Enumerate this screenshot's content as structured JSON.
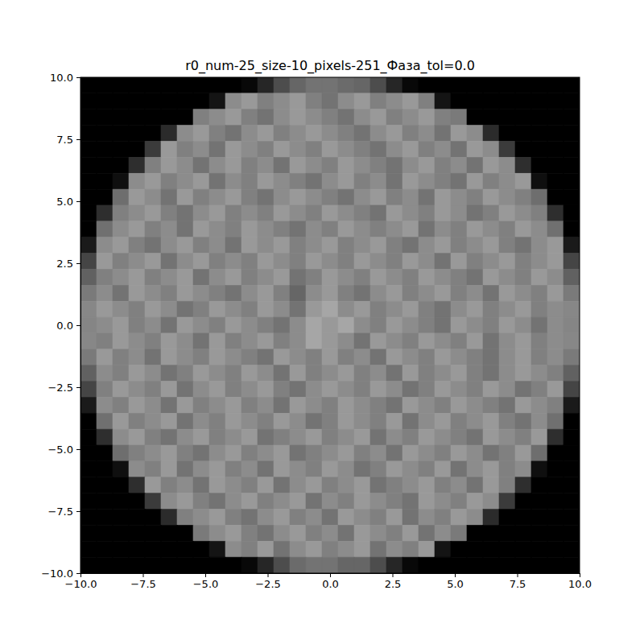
{
  "chart_data": {
    "type": "heatmap",
    "title": "r0_num-25_size-10_pixels-251_Фаза_tol=0.0",
    "xlim": [
      -10,
      10
    ],
    "ylim": [
      -10,
      10
    ],
    "zlim": [
      0,
      1
    ],
    "xticks": [
      {
        "value": -10,
        "label": "−10.0"
      },
      {
        "value": -7.5,
        "label": "−7.5"
      },
      {
        "value": -5,
        "label": "−5.0"
      },
      {
        "value": -2.5,
        "label": "−2.5"
      },
      {
        "value": 0,
        "label": "0.0"
      },
      2.5,
      {
        "value": 5,
        "label": "5.0"
      },
      7.5,
      {
        "value": 10,
        "label": "10.0"
      }
    ],
    "yticks": [
      {
        "value": -10,
        "label": "−10.0"
      },
      {
        "value": -7.5,
        "label": "−7.5"
      },
      {
        "value": -5,
        "label": "−5.0"
      },
      {
        "value": -2.5,
        "label": "−2.5"
      },
      {
        "value": 0,
        "label": "0.0"
      },
      2.5,
      {
        "value": 5,
        "label": "5.0"
      },
      7.5,
      {
        "value": 10,
        "label": "10.0"
      }
    ],
    "z": [
      [
        0,
        0,
        0,
        0,
        0,
        0,
        0,
        0,
        0,
        0,
        0.03,
        0.15,
        0.3,
        0.4,
        0.45,
        0.45,
        0.42,
        0.4,
        0.3,
        0.15,
        0.03,
        0,
        0,
        0,
        0,
        0,
        0,
        0,
        0,
        0,
        0
      ],
      [
        0,
        0,
        0,
        0,
        0,
        0,
        0,
        0,
        0.08,
        0.55,
        0.6,
        0.5,
        0.55,
        0.6,
        0.5,
        0.45,
        0.55,
        0.6,
        0.5,
        0.55,
        0.6,
        0.5,
        0.08,
        0,
        0,
        0,
        0,
        0,
        0,
        0,
        0
      ],
      [
        0,
        0,
        0,
        0,
        0,
        0,
        0,
        0.5,
        0.55,
        0.6,
        0.5,
        0.45,
        0.55,
        0.6,
        0.55,
        0.5,
        0.45,
        0.55,
        0.6,
        0.5,
        0.55,
        0.6,
        0.5,
        0.48,
        0,
        0,
        0,
        0,
        0,
        0,
        0
      ],
      [
        0,
        0,
        0,
        0,
        0,
        0.17,
        0.55,
        0.6,
        0.5,
        0.45,
        0.55,
        0.6,
        0.5,
        0.55,
        0.6,
        0.55,
        0.5,
        0.45,
        0.55,
        0.6,
        0.5,
        0.55,
        0.45,
        0.6,
        0.55,
        0.17,
        0,
        0,
        0,
        0,
        0
      ],
      [
        0,
        0,
        0,
        0,
        0.23,
        0.6,
        0.5,
        0.55,
        0.45,
        0.6,
        0.55,
        0.5,
        0.6,
        0.55,
        0.5,
        0.6,
        0.55,
        0.5,
        0.45,
        0.55,
        0.6,
        0.5,
        0.55,
        0.45,
        0.6,
        0.55,
        0.23,
        0,
        0,
        0,
        0
      ],
      [
        0,
        0,
        0,
        0.18,
        0.5,
        0.6,
        0.55,
        0.45,
        0.55,
        0.6,
        0.5,
        0.55,
        0.45,
        0.6,
        0.55,
        0.5,
        0.6,
        0.55,
        0.5,
        0.45,
        0.55,
        0.6,
        0.5,
        0.55,
        0.45,
        0.6,
        0.55,
        0.18,
        0,
        0,
        0
      ],
      [
        0,
        0,
        0.06,
        0.55,
        0.6,
        0.5,
        0.55,
        0.6,
        0.45,
        0.55,
        0.5,
        0.6,
        0.55,
        0.5,
        0.45,
        0.55,
        0.6,
        0.5,
        0.55,
        0.45,
        0.6,
        0.55,
        0.5,
        0.45,
        0.6,
        0.5,
        0.55,
        0.6,
        0.06,
        0,
        0
      ],
      [
        0,
        0,
        0.43,
        0.6,
        0.55,
        0.45,
        0.6,
        0.5,
        0.55,
        0.6,
        0.5,
        0.45,
        0.55,
        0.6,
        0.55,
        0.5,
        0.45,
        0.55,
        0.6,
        0.5,
        0.55,
        0.45,
        0.6,
        0.55,
        0.5,
        0.6,
        0.55,
        0.5,
        0.43,
        0,
        0
      ],
      [
        0,
        0.18,
        0.5,
        0.55,
        0.6,
        0.5,
        0.45,
        0.55,
        0.6,
        0.5,
        0.55,
        0.5,
        0.6,
        0.55,
        0.5,
        0.6,
        0.55,
        0.5,
        0.45,
        0.6,
        0.55,
        0.5,
        0.6,
        0.55,
        0.45,
        0.5,
        0.6,
        0.55,
        0.5,
        0.18,
        0
      ],
      [
        0,
        0.44,
        0.55,
        0.6,
        0.5,
        0.55,
        0.45,
        0.6,
        0.55,
        0.5,
        0.6,
        0.55,
        0.5,
        0.45,
        0.55,
        0.5,
        0.6,
        0.55,
        0.5,
        0.55,
        0.6,
        0.45,
        0.55,
        0.5,
        0.6,
        0.55,
        0.5,
        0.6,
        0.55,
        0.44,
        0
      ],
      [
        0.1,
        0.55,
        0.6,
        0.5,
        0.45,
        0.55,
        0.6,
        0.5,
        0.55,
        0.45,
        0.6,
        0.55,
        0.6,
        0.5,
        0.55,
        0.6,
        0.5,
        0.55,
        0.6,
        0.5,
        0.45,
        0.55,
        0.6,
        0.5,
        0.55,
        0.6,
        0.5,
        0.45,
        0.55,
        0.6,
        0.1
      ],
      [
        0.27,
        0.6,
        0.5,
        0.55,
        0.6,
        0.45,
        0.55,
        0.6,
        0.5,
        0.55,
        0.5,
        0.6,
        0.55,
        0.5,
        0.6,
        0.55,
        0.5,
        0.6,
        0.55,
        0.5,
        0.6,
        0.55,
        0.45,
        0.6,
        0.5,
        0.55,
        0.6,
        0.5,
        0.55,
        0.6,
        0.27
      ],
      [
        0.38,
        0.5,
        0.55,
        0.6,
        0.5,
        0.55,
        0.6,
        0.45,
        0.55,
        0.6,
        0.5,
        0.55,
        0.6,
        0.45,
        0.5,
        0.6,
        0.55,
        0.5,
        0.6,
        0.55,
        0.5,
        0.6,
        0.55,
        0.5,
        0.45,
        0.6,
        0.55,
        0.5,
        0.6,
        0.55,
        0.38
      ],
      [
        0.48,
        0.55,
        0.45,
        0.6,
        0.55,
        0.5,
        0.6,
        0.55,
        0.5,
        0.45,
        0.55,
        0.6,
        0.5,
        0.4,
        0.55,
        0.6,
        0.5,
        0.45,
        0.55,
        0.6,
        0.5,
        0.55,
        0.6,
        0.5,
        0.55,
        0.45,
        0.6,
        0.55,
        0.5,
        0.6,
        0.48
      ],
      [
        0.53,
        0.6,
        0.55,
        0.5,
        0.6,
        0.55,
        0.45,
        0.5,
        0.6,
        0.55,
        0.5,
        0.6,
        0.55,
        0.45,
        0.6,
        0.65,
        0.55,
        0.6,
        0.5,
        0.55,
        0.6,
        0.5,
        0.45,
        0.55,
        0.6,
        0.5,
        0.55,
        0.6,
        0.5,
        0.55,
        0.53
      ],
      [
        0.52,
        0.55,
        0.6,
        0.5,
        0.55,
        0.45,
        0.6,
        0.55,
        0.5,
        0.6,
        0.55,
        0.5,
        0.45,
        0.55,
        0.65,
        0.6,
        0.65,
        0.55,
        0.5,
        0.6,
        0.55,
        0.5,
        0.45,
        0.6,
        0.55,
        0.5,
        0.6,
        0.55,
        0.45,
        0.55,
        0.52
      ],
      [
        0.53,
        0.5,
        0.6,
        0.55,
        0.5,
        0.6,
        0.55,
        0.45,
        0.6,
        0.5,
        0.55,
        0.6,
        0.5,
        0.55,
        0.65,
        0.6,
        0.55,
        0.45,
        0.6,
        0.55,
        0.5,
        0.6,
        0.55,
        0.5,
        0.6,
        0.45,
        0.55,
        0.6,
        0.5,
        0.55,
        0.53
      ],
      [
        0.48,
        0.6,
        0.5,
        0.55,
        0.45,
        0.6,
        0.55,
        0.5,
        0.6,
        0.55,
        0.5,
        0.45,
        0.6,
        0.55,
        0.5,
        0.6,
        0.5,
        0.55,
        0.45,
        0.6,
        0.55,
        0.5,
        0.6,
        0.55,
        0.5,
        0.45,
        0.55,
        0.6,
        0.5,
        0.55,
        0.48
      ],
      [
        0.38,
        0.55,
        0.5,
        0.6,
        0.55,
        0.45,
        0.5,
        0.6,
        0.55,
        0.5,
        0.6,
        0.55,
        0.45,
        0.6,
        0.5,
        0.55,
        0.6,
        0.5,
        0.55,
        0.45,
        0.6,
        0.5,
        0.55,
        0.6,
        0.5,
        0.45,
        0.55,
        0.6,
        0.55,
        0.5,
        0.38
      ],
      [
        0.27,
        0.5,
        0.6,
        0.55,
        0.5,
        0.6,
        0.45,
        0.55,
        0.6,
        0.5,
        0.55,
        0.6,
        0.5,
        0.45,
        0.55,
        0.6,
        0.55,
        0.5,
        0.6,
        0.55,
        0.45,
        0.5,
        0.6,
        0.55,
        0.5,
        0.6,
        0.55,
        0.45,
        0.5,
        0.6,
        0.27
      ],
      [
        0.1,
        0.55,
        0.5,
        0.6,
        0.55,
        0.45,
        0.6,
        0.5,
        0.55,
        0.6,
        0.5,
        0.55,
        0.45,
        0.6,
        0.55,
        0.5,
        0.6,
        0.55,
        0.5,
        0.45,
        0.6,
        0.55,
        0.5,
        0.6,
        0.55,
        0.5,
        0.45,
        0.6,
        0.55,
        0.5,
        0.1
      ],
      [
        0,
        0.44,
        0.6,
        0.5,
        0.55,
        0.6,
        0.45,
        0.55,
        0.5,
        0.6,
        0.55,
        0.5,
        0.6,
        0.55,
        0.45,
        0.5,
        0.6,
        0.55,
        0.5,
        0.6,
        0.45,
        0.55,
        0.6,
        0.5,
        0.55,
        0.6,
        0.5,
        0.45,
        0.55,
        0.44,
        0
      ],
      [
        0,
        0.18,
        0.55,
        0.6,
        0.5,
        0.45,
        0.55,
        0.6,
        0.5,
        0.55,
        0.6,
        0.45,
        0.5,
        0.55,
        0.6,
        0.5,
        0.55,
        0.6,
        0.45,
        0.55,
        0.5,
        0.6,
        0.55,
        0.5,
        0.45,
        0.6,
        0.55,
        0.5,
        0.6,
        0.18,
        0
      ],
      [
        0,
        0,
        0.43,
        0.5,
        0.55,
        0.6,
        0.5,
        0.45,
        0.55,
        0.6,
        0.5,
        0.55,
        0.6,
        0.45,
        0.5,
        0.55,
        0.6,
        0.5,
        0.55,
        0.45,
        0.6,
        0.55,
        0.5,
        0.6,
        0.55,
        0.45,
        0.5,
        0.6,
        0.43,
        0,
        0
      ],
      [
        0,
        0,
        0.06,
        0.55,
        0.5,
        0.6,
        0.45,
        0.55,
        0.6,
        0.5,
        0.55,
        0.45,
        0.6,
        0.55,
        0.5,
        0.6,
        0.55,
        0.45,
        0.5,
        0.6,
        0.55,
        0.5,
        0.6,
        0.45,
        0.55,
        0.6,
        0.5,
        0.55,
        0.06,
        0,
        0
      ],
      [
        0,
        0,
        0,
        0.18,
        0.6,
        0.5,
        0.55,
        0.45,
        0.6,
        0.55,
        0.5,
        0.6,
        0.45,
        0.55,
        0.6,
        0.5,
        0.55,
        0.6,
        0.45,
        0.5,
        0.55,
        0.6,
        0.5,
        0.55,
        0.45,
        0.6,
        0.5,
        0.18,
        0,
        0,
        0
      ],
      [
        0,
        0,
        0,
        0,
        0.23,
        0.55,
        0.6,
        0.5,
        0.45,
        0.55,
        0.6,
        0.5,
        0.55,
        0.6,
        0.45,
        0.55,
        0.5,
        0.6,
        0.55,
        0.5,
        0.45,
        0.6,
        0.55,
        0.5,
        0.6,
        0.55,
        0.23,
        0,
        0,
        0,
        0
      ],
      [
        0,
        0,
        0,
        0,
        0,
        0.17,
        0.5,
        0.55,
        0.6,
        0.5,
        0.45,
        0.55,
        0.6,
        0.5,
        0.55,
        0.45,
        0.6,
        0.55,
        0.5,
        0.6,
        0.45,
        0.55,
        0.5,
        0.6,
        0.55,
        0.17,
        0,
        0,
        0,
        0,
        0
      ],
      [
        0,
        0,
        0,
        0,
        0,
        0,
        0,
        0.48,
        0.55,
        0.6,
        0.5,
        0.45,
        0.55,
        0.6,
        0.5,
        0.55,
        0.45,
        0.6,
        0.55,
        0.5,
        0.6,
        0.45,
        0.55,
        0.48,
        0,
        0,
        0,
        0,
        0,
        0,
        0
      ],
      [
        0,
        0,
        0,
        0,
        0,
        0,
        0,
        0,
        0.08,
        0.55,
        0.5,
        0.6,
        0.45,
        0.55,
        0.6,
        0.5,
        0.55,
        0.6,
        0.45,
        0.55,
        0.5,
        0.6,
        0.08,
        0,
        0,
        0,
        0,
        0,
        0,
        0,
        0
      ],
      [
        0,
        0,
        0,
        0,
        0,
        0,
        0,
        0,
        0,
        0,
        0.03,
        0.15,
        0.3,
        0.42,
        0.45,
        0.45,
        0.4,
        0.4,
        0.3,
        0.15,
        0.03,
        0,
        0,
        0,
        0,
        0,
        0,
        0,
        0,
        0,
        0
      ]
    ]
  }
}
